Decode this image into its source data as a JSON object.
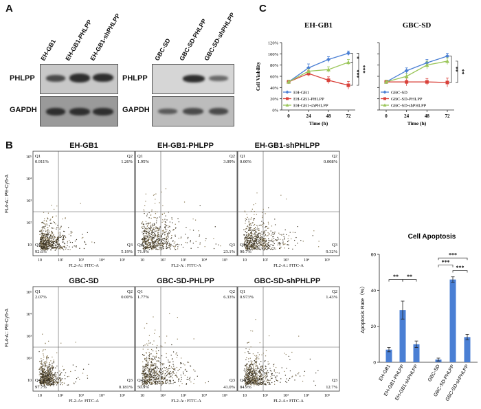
{
  "panels": {
    "a": "A",
    "b": "B",
    "c": "C"
  },
  "western": {
    "left": {
      "lanes": [
        "EH-GB1",
        "EH-GB1-PHLPP",
        "EH-GB1-shPHLPP"
      ],
      "rows": [
        "PHLPP",
        "GAPDH"
      ]
    },
    "right": {
      "lanes": [
        "GBC-SD",
        "GBC-SD-PHLPP",
        "GBC-SD-shPHLPP"
      ],
      "rows": [
        "PHLPP",
        "GAPDH"
      ]
    }
  },
  "facs": {
    "ylabel": "FL4-A:: PE-Cy5-A",
    "xlabel": "FL2-A:: FITC-A",
    "yticks": [
      "10⁵",
      "10⁴",
      "10³",
      "10²",
      "10"
    ],
    "xticks": [
      "10",
      "10²",
      "10³",
      "10⁴",
      "10⁵"
    ],
    "plots": [
      {
        "title": "EH-GB1",
        "q1": "Q1",
        "q2": "Q2",
        "q3": "Q3",
        "q4": "Q4",
        "v1": "0.911%",
        "v2": "1.26%",
        "v3": "5.19%",
        "v4": "92.6%"
      },
      {
        "title": "EH-GB1-PHLPP",
        "q1": "Q1",
        "q2": "Q2",
        "q3": "Q3",
        "q4": "Q4",
        "v1": "1.95%",
        "v2": "3.09%",
        "v3": "23.1%",
        "v4": "71.9%"
      },
      {
        "title": "EH-GB1-shPHLPP",
        "q1": "Q1",
        "q2": "Q2",
        "q3": "Q3",
        "q4": "Q4",
        "v1": "0.00%",
        "v2": "0.008%",
        "v3": "9.32%",
        "v4": "90.7%"
      },
      {
        "title": "GBC-SD",
        "q1": "Q1",
        "q2": "Q2",
        "q3": "Q3",
        "q4": "Q4",
        "v1": "2.07%",
        "v2": "0.00%",
        "v3": "0.181%",
        "v4": "97.7%"
      },
      {
        "title": "GBC-SD-PHLPP",
        "q1": "Q1",
        "q2": "Q2",
        "q3": "Q3",
        "q4": "Q4",
        "v1": "1.77%",
        "v2": "6.33%",
        "v3": "41.0%",
        "v4": "50.9%"
      },
      {
        "title": "GBC-SD-shPHLPP",
        "q1": "Q1",
        "q2": "Q2",
        "q3": "Q3",
        "q4": "Q4",
        "v1": "0.973%",
        "v2": "1.43%",
        "v3": "12.7%",
        "v4": "84.9%"
      }
    ]
  },
  "chart_data": [
    {
      "type": "line",
      "title": "EH-GB1",
      "xlabel": "Time (h)",
      "ylabel": "Cell Viability",
      "x": [
        0,
        24,
        48,
        72
      ],
      "ylim": [
        0,
        120
      ],
      "yticks": [
        "0%",
        "20%",
        "40%",
        "60%",
        "80%",
        "100%",
        "120%"
      ],
      "series": [
        {
          "name": "EH-GB1",
          "color": "#4a7fd4",
          "marker": "diamond",
          "values": [
            50,
            75,
            90,
            101
          ],
          "err": [
            3,
            7,
            5,
            4
          ]
        },
        {
          "name": "EH-GB1-PHLPP",
          "color": "#d9413a",
          "marker": "square",
          "values": [
            50,
            65,
            53,
            44
          ],
          "err": [
            3,
            5,
            6,
            7
          ]
        },
        {
          "name": "EH-GB1-shPHLPP",
          "color": "#9bc65a",
          "marker": "triangle",
          "values": [
            50,
            69,
            72,
            85
          ],
          "err": [
            3,
            4,
            5,
            5
          ]
        }
      ],
      "significance": [
        "*",
        "***",
        "***"
      ],
      "grid": false,
      "legend": "bottom-left"
    },
    {
      "type": "line",
      "title": "GBC-SD",
      "xlabel": "Time (h)",
      "ylabel": "",
      "x": [
        0,
        24,
        48,
        72
      ],
      "ylim": [
        0,
        120
      ],
      "series": [
        {
          "name": "GBC-SD",
          "color": "#4a7fd4",
          "marker": "diamond",
          "values": [
            50,
            70,
            84,
            96
          ],
          "err": [
            3,
            5,
            6,
            5
          ]
        },
        {
          "name": "GBC-SD-PHLPP",
          "color": "#d9413a",
          "marker": "square",
          "values": [
            50,
            50,
            50,
            49
          ],
          "err": [
            3,
            7,
            6,
            8
          ]
        },
        {
          "name": "GBC-SD-shPHLPP",
          "color": "#9bc65a",
          "marker": "triangle",
          "values": [
            50,
            60,
            80,
            87
          ],
          "err": [
            3,
            5,
            7,
            6
          ]
        }
      ],
      "significance": [
        "**",
        "**"
      ],
      "grid": false,
      "legend": "bottom-left"
    },
    {
      "type": "bar",
      "title": "Cell Apoptosis",
      "ylabel": "Apoptosis Rate（%）",
      "categories": [
        "EH-GB1",
        "EH-GB1-PHLPP",
        "EH-GB1-shPHLPP",
        "GBC-SD",
        "GBC-SD-PHLPP",
        "GBC-SD-shPHLPP"
      ],
      "values": [
        7,
        29,
        10,
        1.5,
        46,
        14
      ],
      "err": [
        1.2,
        5,
        1.8,
        0.8,
        1.5,
        1.5
      ],
      "ylim": [
        0,
        60
      ],
      "yticks": [
        "0",
        "20",
        "40",
        "60"
      ],
      "color": "#4a7fd4",
      "significance": [
        "**",
        "**",
        "***",
        "***",
        "***"
      ],
      "grid": false
    }
  ]
}
